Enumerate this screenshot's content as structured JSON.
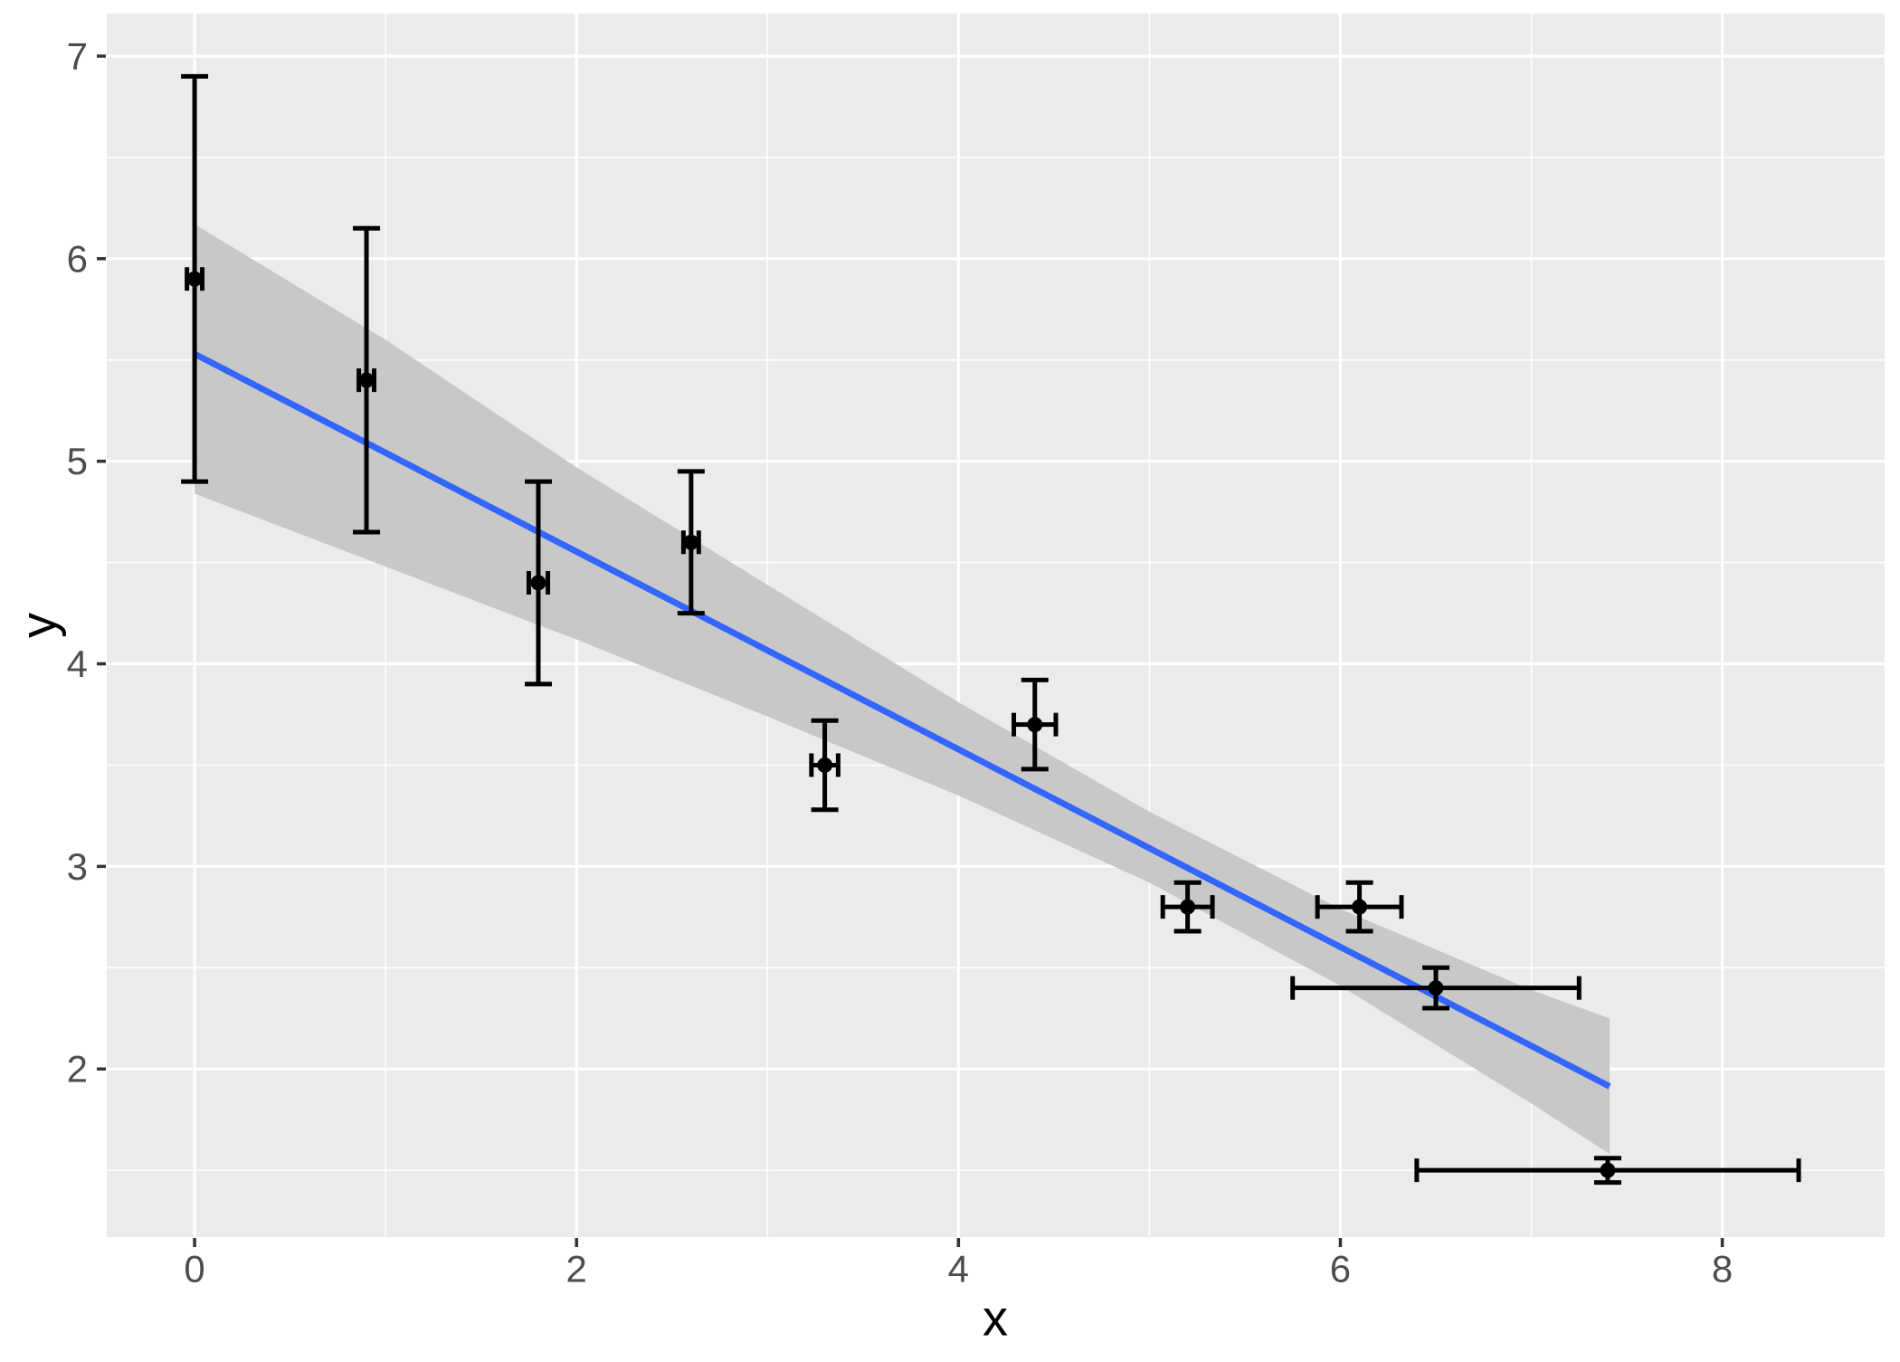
{
  "chart_data": {
    "type": "scatter",
    "title": "",
    "xlabel": "x",
    "ylabel": "y",
    "xlim": [
      -0.46,
      8.85
    ],
    "ylim": [
      1.17,
      7.21
    ],
    "grid": "on",
    "legend": "none",
    "x_ticks": [
      0,
      2,
      4,
      6,
      8
    ],
    "x_minor_ticks": [
      1,
      3,
      5,
      7
    ],
    "y_ticks": [
      2,
      3,
      4,
      5,
      6,
      7
    ],
    "y_minor_ticks": [
      1.5,
      2.5,
      3.5,
      4.5,
      5.5,
      6.5
    ],
    "points": [
      {
        "x": 0.0,
        "y": 5.9,
        "xerr": 0.04,
        "yerr": 1.0
      },
      {
        "x": 0.9,
        "y": 5.4,
        "xerr": 0.04,
        "yerr": 0.75
      },
      {
        "x": 1.8,
        "y": 4.4,
        "xerr": 0.05,
        "yerr": 0.5
      },
      {
        "x": 2.6,
        "y": 4.6,
        "xerr": 0.04,
        "yerr": 0.35
      },
      {
        "x": 3.3,
        "y": 3.5,
        "xerr": 0.07,
        "yerr": 0.22
      },
      {
        "x": 4.4,
        "y": 3.7,
        "xerr": 0.11,
        "yerr": 0.22
      },
      {
        "x": 5.2,
        "y": 2.8,
        "xerr": 0.13,
        "yerr": 0.12
      },
      {
        "x": 6.1,
        "y": 2.8,
        "xerr": 0.22,
        "yerr": 0.12
      },
      {
        "x": 6.5,
        "y": 2.4,
        "xerr": 0.75,
        "yerr": 0.1
      },
      {
        "x": 7.4,
        "y": 1.5,
        "xerr": 1.0,
        "yerr": 0.06
      }
    ],
    "trend_line": {
      "fit": "linear",
      "intercept": 5.53,
      "slope": -0.488,
      "x_start": 0.0,
      "x_end": 7.41
    },
    "ci_band": {
      "x": [
        0.0,
        1.0,
        2.0,
        3.0,
        4.0,
        5.0,
        6.0,
        7.0,
        7.41
      ],
      "upper": [
        6.17,
        5.6,
        4.97,
        4.39,
        3.81,
        3.27,
        2.79,
        2.39,
        2.25
      ],
      "lower": [
        4.84,
        4.48,
        4.12,
        3.74,
        3.35,
        2.92,
        2.41,
        1.83,
        1.58
      ]
    },
    "colors": {
      "panel_background": "#EBEBEB",
      "grid": "#FFFFFF",
      "ci_band": "#C8C8C8",
      "trend_line": "#3366FF",
      "point": "#000000",
      "error_bar": "#000000",
      "tick_label": "#4D4D4D",
      "tick_mark": "#333333",
      "axis_title": "#000000"
    }
  }
}
